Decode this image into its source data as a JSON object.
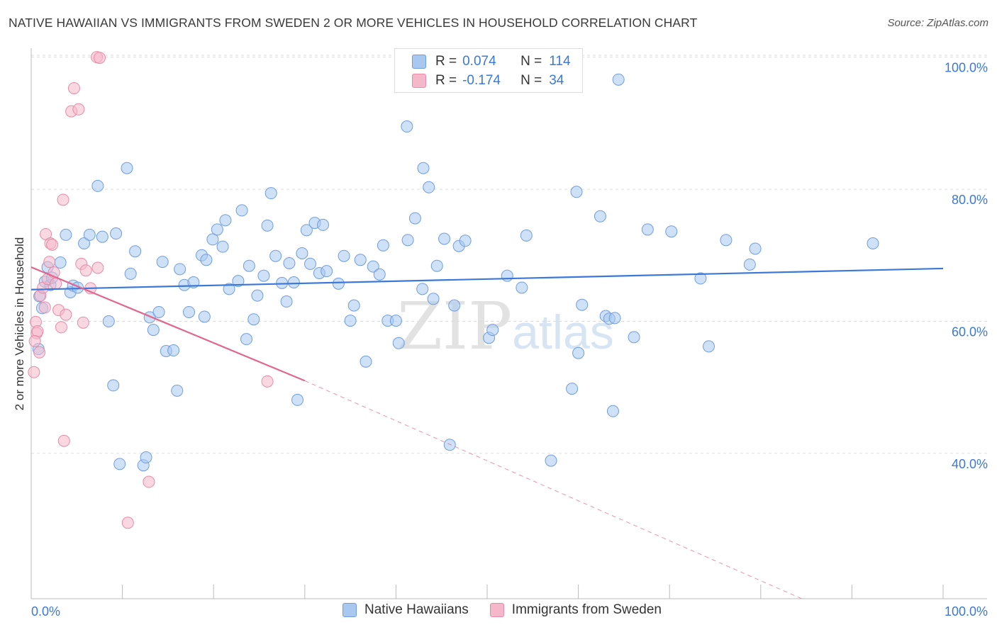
{
  "chart_data": {
    "type": "scatter",
    "title": "NATIVE HAWAIIAN VS IMMIGRANTS FROM SWEDEN 2 OR MORE VEHICLES IN HOUSEHOLD CORRELATION CHART",
    "source": "Source: ZipAtlas.com",
    "xlabel": "",
    "ylabel": "2 or more Vehicles in Household",
    "xlim": [
      0,
      100
    ],
    "ylim": [
      18,
      102
    ],
    "x_tick_labels": [
      "0.0%",
      "100.0%"
    ],
    "y_tick_values": [
      40,
      60,
      80,
      100
    ],
    "y_tick_labels": [
      "40.0%",
      "60.0%",
      "80.0%",
      "100.0%"
    ],
    "grid": true,
    "watermark": "ZIPatlas",
    "legend_stats": [
      {
        "r_label": "R =",
        "r_value": "0.074",
        "n_label": "N =",
        "n_value": "114",
        "color": "#a8c8f0",
        "edge": "#6f9de0"
      },
      {
        "r_label": "R =",
        "r_value": "-0.174",
        "n_label": "N =",
        "n_value": "34",
        "color": "#f5b8cb",
        "edge": "#e88aa8"
      }
    ],
    "series": [
      {
        "name": "Native Hawaiians",
        "color": "#a8c8f0",
        "edge": "#6f9de0",
        "line_color": "#3b78d8",
        "trend": {
          "x1": 0,
          "y1": 64.8,
          "x2": 100,
          "y2": 68.0
        },
        "points": [
          [
            0.8,
            55.8
          ],
          [
            0.9,
            63.8
          ],
          [
            1.2,
            62.0
          ],
          [
            1.5,
            66.0
          ],
          [
            1.8,
            68.2
          ],
          [
            2.1,
            65.5
          ],
          [
            2.3,
            66.6
          ],
          [
            3.2,
            68.9
          ],
          [
            3.8,
            73.1
          ],
          [
            4.3,
            64.4
          ],
          [
            4.6,
            65.4
          ],
          [
            5.1,
            65.1
          ],
          [
            5.8,
            71.8
          ],
          [
            6.4,
            73.1
          ],
          [
            7.3,
            80.5
          ],
          [
            7.8,
            72.8
          ],
          [
            8.5,
            60.0
          ],
          [
            9.0,
            50.3
          ],
          [
            9.3,
            73.3
          ],
          [
            9.7,
            38.4
          ],
          [
            10.5,
            83.2
          ],
          [
            10.9,
            67.2
          ],
          [
            11.4,
            70.6
          ],
          [
            12.3,
            38.2
          ],
          [
            12.6,
            39.4
          ],
          [
            13.0,
            60.6
          ],
          [
            13.4,
            58.7
          ],
          [
            14.0,
            61.4
          ],
          [
            14.4,
            69.0
          ],
          [
            14.8,
            55.5
          ],
          [
            15.6,
            55.6
          ],
          [
            16.0,
            49.5
          ],
          [
            16.3,
            67.9
          ],
          [
            16.8,
            65.5
          ],
          [
            17.3,
            61.4
          ],
          [
            17.8,
            65.9
          ],
          [
            18.7,
            70.0
          ],
          [
            19.0,
            60.7
          ],
          [
            19.2,
            69.3
          ],
          [
            19.9,
            72.4
          ],
          [
            20.4,
            73.9
          ],
          [
            21.0,
            71.3
          ],
          [
            21.3,
            75.3
          ],
          [
            21.7,
            64.9
          ],
          [
            22.7,
            66.1
          ],
          [
            23.1,
            76.8
          ],
          [
            23.6,
            57.3
          ],
          [
            23.9,
            68.4
          ],
          [
            24.4,
            60.3
          ],
          [
            24.8,
            63.9
          ],
          [
            25.5,
            66.9
          ],
          [
            25.9,
            74.5
          ],
          [
            26.3,
            79.4
          ],
          [
            26.8,
            69.9
          ],
          [
            27.5,
            65.8
          ],
          [
            28.0,
            63.0
          ],
          [
            28.3,
            68.8
          ],
          [
            28.8,
            65.9
          ],
          [
            29.2,
            48.1
          ],
          [
            29.7,
            70.3
          ],
          [
            30.2,
            73.8
          ],
          [
            30.6,
            68.7
          ],
          [
            31.1,
            74.9
          ],
          [
            31.6,
            67.3
          ],
          [
            32.0,
            74.6
          ],
          [
            32.4,
            67.6
          ],
          [
            33.7,
            65.7
          ],
          [
            34.3,
            69.9
          ],
          [
            35.0,
            60.1
          ],
          [
            35.4,
            62.4
          ],
          [
            36.1,
            69.3
          ],
          [
            36.7,
            53.9
          ],
          [
            37.5,
            68.3
          ],
          [
            38.2,
            67.1
          ],
          [
            38.6,
            71.5
          ],
          [
            39.1,
            60.1
          ],
          [
            40.0,
            60.1
          ],
          [
            40.3,
            56.7
          ],
          [
            41.2,
            89.5
          ],
          [
            41.3,
            72.3
          ],
          [
            42.1,
            75.6
          ],
          [
            43.0,
            83.2
          ],
          [
            43.6,
            80.3
          ],
          [
            42.9,
            64.9
          ],
          [
            44.1,
            63.4
          ],
          [
            44.5,
            68.4
          ],
          [
            45.3,
            72.5
          ],
          [
            45.9,
            41.3
          ],
          [
            46.4,
            62.4
          ],
          [
            46.9,
            71.4
          ],
          [
            47.6,
            72.2
          ],
          [
            50.2,
            57.5
          ],
          [
            50.6,
            58.7
          ],
          [
            52.2,
            66.9
          ],
          [
            53.8,
            65.1
          ],
          [
            54.3,
            73.0
          ],
          [
            57.0,
            38.9
          ],
          [
            59.3,
            49.8
          ],
          [
            59.8,
            79.6
          ],
          [
            60.0,
            55.2
          ],
          [
            60.4,
            62.5
          ],
          [
            62.4,
            75.9
          ],
          [
            63.0,
            60.8
          ],
          [
            63.4,
            60.4
          ],
          [
            63.8,
            46.4
          ],
          [
            64.4,
            96.6
          ],
          [
            66.1,
            57.6
          ],
          [
            67.6,
            73.9
          ],
          [
            70.2,
            73.6
          ],
          [
            73.4,
            66.5
          ],
          [
            74.3,
            56.2
          ],
          [
            76.2,
            72.3
          ],
          [
            78.8,
            68.6
          ],
          [
            79.4,
            71.0
          ],
          [
            92.3,
            71.8
          ],
          [
            64.0,
            60.5
          ]
        ]
      },
      {
        "name": "Immigrants from Sweden",
        "color": "#f5b8cb",
        "edge": "#e88aa8",
        "line_color": "#e2678f",
        "trend": {
          "x1": 0,
          "y1": 68.2,
          "x2": 30,
          "y2": 51.0
        },
        "trend_ext": {
          "x1": 30,
          "y1": 51.0,
          "x2": 84.5,
          "y2": 18.0
        },
        "points": [
          [
            0.3,
            52.3
          ],
          [
            0.5,
            59.9
          ],
          [
            0.6,
            58.2
          ],
          [
            0.7,
            58.5
          ],
          [
            0.9,
            55.3
          ],
          [
            1.0,
            63.9
          ],
          [
            1.3,
            65.1
          ],
          [
            1.5,
            62.1
          ],
          [
            1.6,
            73.2
          ],
          [
            1.8,
            66.4
          ],
          [
            2.0,
            69.0
          ],
          [
            2.1,
            71.8
          ],
          [
            2.3,
            71.6
          ],
          [
            2.5,
            67.4
          ],
          [
            2.7,
            65.7
          ],
          [
            3.0,
            61.7
          ],
          [
            3.3,
            59.1
          ],
          [
            3.5,
            78.4
          ],
          [
            3.6,
            41.9
          ],
          [
            3.8,
            61.0
          ],
          [
            4.4,
            91.8
          ],
          [
            4.7,
            95.3
          ],
          [
            5.2,
            92.1
          ],
          [
            5.5,
            68.7
          ],
          [
            5.7,
            59.8
          ],
          [
            6.0,
            67.7
          ],
          [
            6.5,
            65.0
          ],
          [
            7.2,
            100.0
          ],
          [
            7.5,
            99.9
          ],
          [
            7.3,
            68.1
          ],
          [
            10.6,
            29.5
          ],
          [
            12.9,
            35.7
          ],
          [
            25.9,
            50.9
          ],
          [
            0.4,
            57.0
          ]
        ]
      }
    ]
  }
}
